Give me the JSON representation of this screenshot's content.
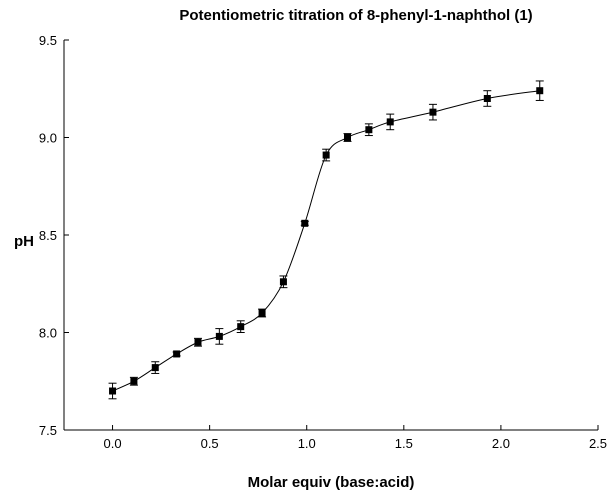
{
  "chart_data": {
    "type": "scatter",
    "title": "Potentiometric titration of 8-phenyl-1-naphthol (1)",
    "xlabel": "Molar equiv (base:acid)",
    "ylabel": "pH",
    "xlim": [
      -0.25,
      2.5
    ],
    "ylim": [
      7.5,
      9.5
    ],
    "xticks": [
      0.0,
      0.5,
      1.0,
      1.5,
      2.0,
      2.5
    ],
    "xtick_labels": [
      "0.0",
      "0.5",
      "1.0",
      "1.5",
      "2.0",
      "2.5"
    ],
    "yticks": [
      7.5,
      8.0,
      8.5,
      9.0,
      9.5
    ],
    "ytick_labels": [
      "7.5",
      "8.0",
      "8.5",
      "9.0",
      "9.5"
    ],
    "grid": false,
    "marker": "square",
    "fit_line": true,
    "series": [
      {
        "name": "pH",
        "x": [
          0.0,
          0.11,
          0.22,
          0.33,
          0.44,
          0.55,
          0.66,
          0.77,
          0.88,
          0.99,
          1.1,
          1.21,
          1.32,
          1.43,
          1.65,
          1.93,
          2.2
        ],
        "y": [
          7.7,
          7.75,
          7.82,
          7.89,
          7.95,
          7.98,
          8.03,
          8.1,
          8.26,
          8.56,
          8.91,
          9.0,
          9.04,
          9.08,
          9.13,
          9.2,
          9.24
        ],
        "error": [
          0.04,
          0.02,
          0.03,
          0.01,
          0.02,
          0.04,
          0.03,
          0.02,
          0.03,
          0.01,
          0.03,
          0.02,
          0.03,
          0.04,
          0.04,
          0.04,
          0.05
        ]
      }
    ]
  }
}
